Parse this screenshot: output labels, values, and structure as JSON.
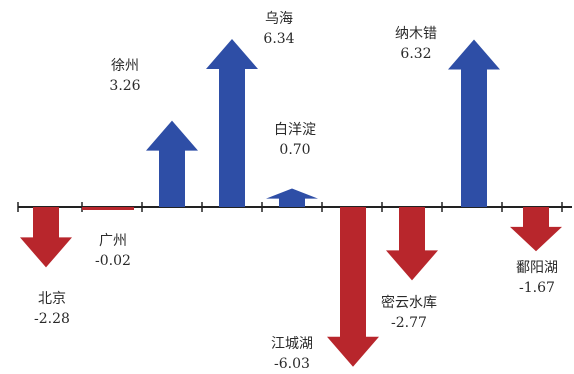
{
  "chart_data": {
    "type": "bar",
    "title": "",
    "xlabel": "",
    "ylabel": "",
    "categories": [
      "北京",
      "广州",
      "徐州",
      "乌海",
      "白洋淀",
      "江城湖",
      "密云水库",
      "纳木错",
      "鄱阳湖"
    ],
    "values": [
      -2.28,
      -0.02,
      3.26,
      6.34,
      0.7,
      -6.03,
      -2.77,
      6.32,
      -1.67
    ],
    "value_labels": [
      "-2.28",
      "-0.02",
      "3.26",
      "6.34",
      "0.70",
      "-6.03",
      "-2.77",
      "6.32",
      "-1.67"
    ],
    "positive_color": "#2e4ea6",
    "negative_color": "#b8262c",
    "grid": false,
    "legend": "none"
  }
}
